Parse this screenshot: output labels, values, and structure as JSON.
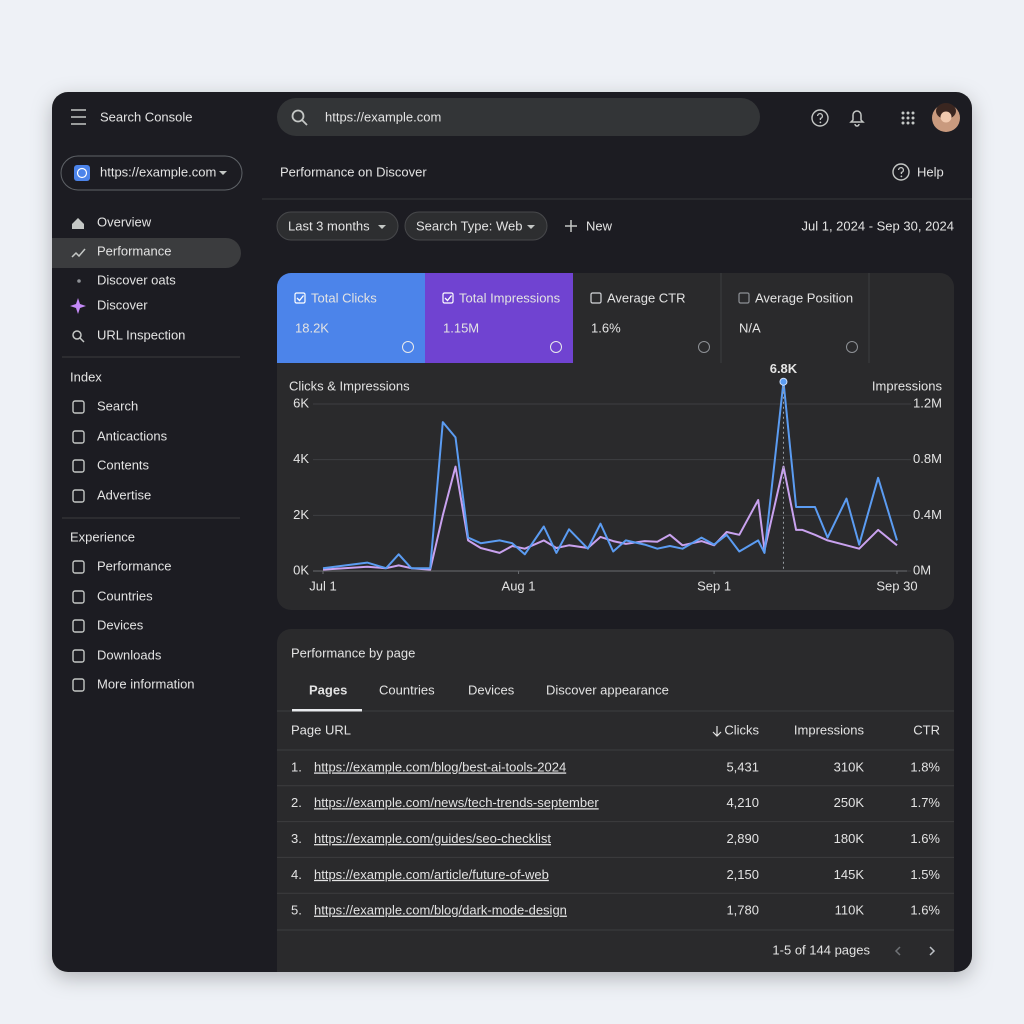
{
  "header": {
    "product": "Search Console",
    "search_placeholder": "https://example.com"
  },
  "property": "https://example.com",
  "nav": {
    "main": [
      "Overview",
      "Performance",
      "Discover oats",
      "Discover",
      "URL Inspection"
    ],
    "index_title": "Index",
    "index": [
      "Search",
      "Anticactions",
      "Contents",
      "Advertise"
    ],
    "experience_title": "Experience",
    "experience": [
      "Performance",
      "Countries",
      "Devices",
      "Downloads",
      "More information"
    ]
  },
  "page_title": "Performance on Discover",
  "help": "Help",
  "filters": [
    "Last 3 months",
    "Search Type: Web"
  ],
  "new": "New",
  "date_range": "Jul 1, 2024 - Sep 30, 2024",
  "metrics": [
    {
      "label": "Total Clicks",
      "value": "18.2K"
    },
    {
      "label": "Total Impressions",
      "value": "1.15M"
    },
    {
      "label": "Average CTR",
      "value": "1.6%"
    },
    {
      "label": "Average Position",
      "value": "N/A"
    }
  ],
  "chart_data": {
    "type": "line",
    "ylabel": "Clicks & Impressions",
    "y2label": "Impressions",
    "x": [
      0,
      7,
      10,
      12,
      14,
      17,
      19,
      21,
      23,
      25,
      28,
      30,
      32,
      35,
      37,
      39,
      42,
      44,
      46,
      48,
      51,
      53,
      55,
      57,
      60,
      62,
      64,
      66,
      69,
      70,
      73,
      75,
      76,
      78,
      80,
      83,
      85,
      88,
      91
    ],
    "xlim": [
      0,
      91
    ],
    "xticks": [
      {
        "value": 0,
        "label": "Jul 1"
      },
      {
        "value": 31,
        "label": "Aug 1"
      },
      {
        "value": 62,
        "label": "Sep 1"
      },
      {
        "value": 91,
        "label": "Sep 30"
      }
    ],
    "ylim": [
      0,
      6000
    ],
    "yticks": [
      {
        "value": 0,
        "label": "0K"
      },
      {
        "value": 2000,
        "label": "2K"
      },
      {
        "value": 4000,
        "label": "4K"
      },
      {
        "value": 6000,
        "label": "6K"
      }
    ],
    "y2lim": [
      0,
      1200000
    ],
    "y2ticks": [
      {
        "value": 0,
        "label": "0M"
      },
      {
        "value": 400000,
        "label": "0.4M"
      },
      {
        "value": 800000,
        "label": "0.8M"
      },
      {
        "value": 1200000,
        "label": "1.2M"
      }
    ],
    "grid": true,
    "series": [
      {
        "name": "Total Clicks",
        "color": "#5b9cf2",
        "values": [
          100,
          300,
          100,
          600,
          100,
          100,
          5350,
          4800,
          1200,
          1000,
          1100,
          1000,
          600,
          1600,
          650,
          1500,
          800,
          1700,
          700,
          1100,
          950,
          800,
          900,
          800,
          1200,
          950,
          1300,
          700,
          1100,
          650,
          6800,
          2300,
          2300,
          2300,
          1200,
          2600,
          950,
          3350,
          1100
        ],
        "value_labels": [
          null,
          null,
          null,
          null,
          null,
          null,
          null,
          null,
          null,
          null,
          null,
          null,
          null,
          null,
          null,
          null,
          null,
          null,
          null,
          null,
          null,
          null,
          null,
          null,
          null,
          null,
          null,
          null,
          null,
          null,
          "6.8K",
          null,
          null,
          null,
          null,
          null,
          null,
          null,
          null
        ]
      },
      {
        "name": "Total Impressions",
        "color": "#c9a2ef",
        "axis": "y2",
        "values": [
          10000,
          30000,
          20000,
          40000,
          20000,
          10000,
          400000,
          750000,
          220000,
          165000,
          130000,
          180000,
          160000,
          220000,
          165000,
          185000,
          165000,
          245000,
          215000,
          195000,
          215000,
          210000,
          260000,
          185000,
          215000,
          185000,
          280000,
          260000,
          510000,
          150000,
          750000,
          295000,
          295000,
          260000,
          220000,
          185000,
          160000,
          295000,
          185000
        ]
      }
    ]
  },
  "table": {
    "title": "Performance by page",
    "tabs": [
      "Pages",
      "Countries",
      "Devices",
      "Discover appearance"
    ],
    "columns": [
      "Page URL",
      "Clicks",
      "Impressions",
      "CTR"
    ],
    "rows": [
      [
        "1.",
        "https://example.com/blog/best-ai-tools-2024",
        "5,431",
        "310K",
        "1.8%"
      ],
      [
        "2.",
        "https://example.com/news/tech-trends-september",
        "4,210",
        "250K",
        "1.7%"
      ],
      [
        "3.",
        "https://example.com/guides/seo-checklist",
        "2,890",
        "180K",
        "1.6%"
      ],
      [
        "4.",
        "https://example.com/article/future-of-web",
        "2,150",
        "145K",
        "1.5%"
      ],
      [
        "5.",
        "https://example.com/blog/dark-mode-design",
        "1,780",
        "110K",
        "1.6%"
      ]
    ],
    "pagination": "1-5 of 144 pages"
  }
}
